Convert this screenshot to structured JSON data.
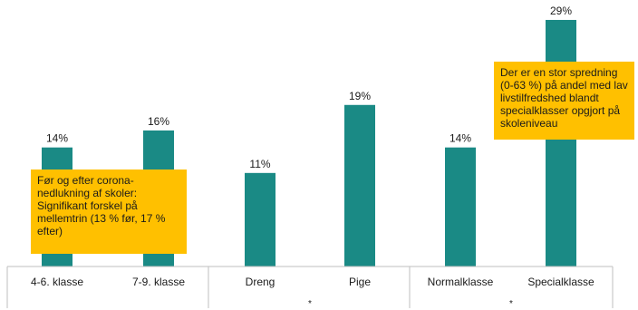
{
  "chart_data": {
    "type": "bar",
    "categories": [
      "4-6. klasse",
      "7-9. klasse",
      "Dreng",
      "Pige",
      "Normalklasse",
      "Specialklasse"
    ],
    "values": [
      14,
      16,
      11,
      19,
      14,
      29
    ],
    "value_labels": [
      "14%",
      "16%",
      "11%",
      "19%",
      "14%",
      "29%"
    ],
    "group_markers": [
      "*",
      "*"
    ],
    "bar_color": "#1a8a85",
    "ylim": [
      0,
      30
    ],
    "title": "",
    "xlabel": "",
    "ylabel": ""
  },
  "annotations": {
    "left": "Før og efter corona-nedlukning  af skoler: Signifikant  forskel på mellemtrin (13 % før, 17 % efter)",
    "right": "Der er en stor spredning (0-63 %) på andel med lav livstilfredshed blandt specialklasser opgjort på skoleniveau"
  },
  "colors": {
    "callout": "#ffc000"
  }
}
